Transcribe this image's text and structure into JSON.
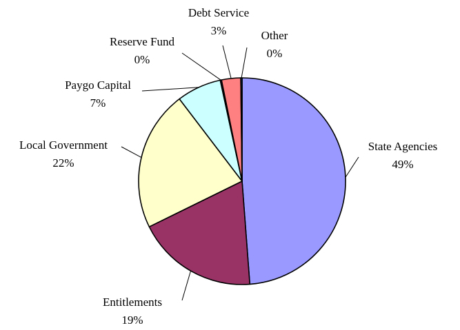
{
  "chart_data": {
    "type": "pie",
    "title": "",
    "legend": "none",
    "start": "12 o'clock",
    "direction": "clockwise",
    "slices": [
      {
        "label": "State Agencies",
        "value": 49,
        "display": "49%",
        "color": "#9999ff"
      },
      {
        "label": "Entitlements",
        "value": 19,
        "display": "19%",
        "color": "#993366"
      },
      {
        "label": "Local Government",
        "value": 22,
        "display": "22%",
        "color": "#ffffcc"
      },
      {
        "label": "Paygo Capital",
        "value": 7,
        "display": "7%",
        "color": "#ccffff"
      },
      {
        "label": "Reserve Fund",
        "value": 0.2,
        "display": "0%",
        "color": "#660066"
      },
      {
        "label": "Debt Service",
        "value": 3,
        "display": "3%",
        "color": "#ff8080"
      },
      {
        "label": "Other",
        "value": 0.2,
        "display": "0%",
        "color": "#0066cc"
      }
    ]
  }
}
